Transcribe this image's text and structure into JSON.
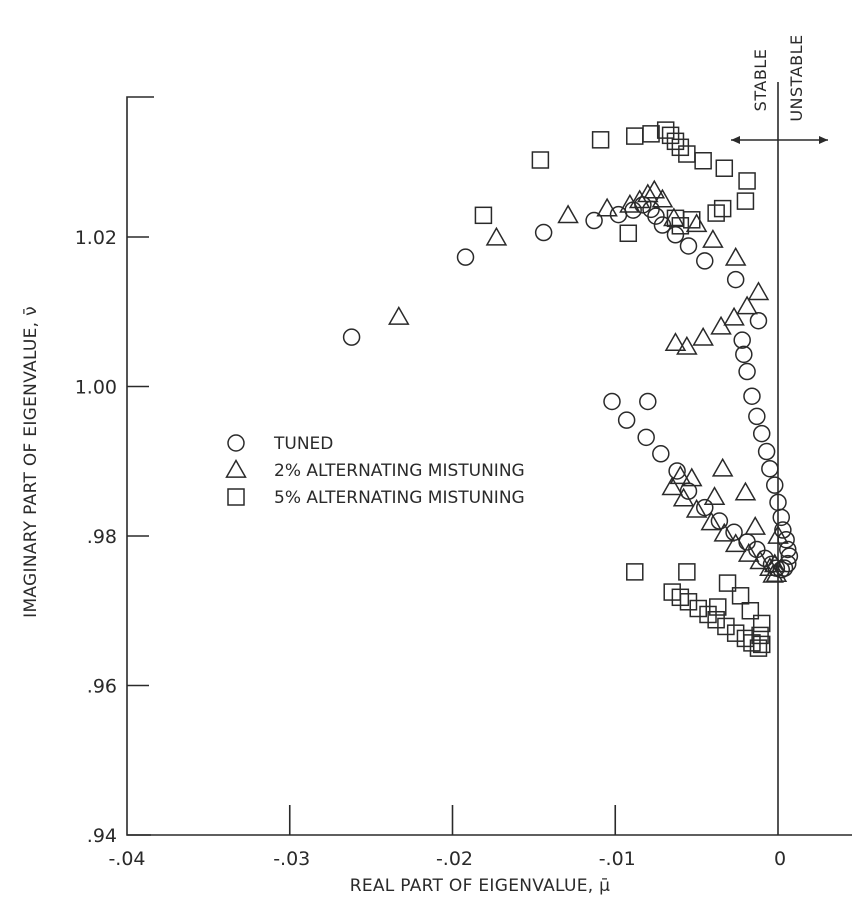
{
  "chart_data": {
    "type": "scatter",
    "title": "",
    "xlabel": "REAL PART OF EIGENVALUE, μ̄",
    "ylabel": "IMAGINARY PART OF EIGENVALUE, ν̄",
    "xlim": [
      -0.04,
      0.0
    ],
    "ylim": [
      0.94,
      1.035
    ],
    "x_ticks": [
      -0.04,
      -0.03,
      -0.02,
      -0.01,
      0
    ],
    "x_tick_labels": [
      "-.04",
      "-.03",
      "-.02",
      "-.01",
      "0"
    ],
    "y_ticks": [
      0.94,
      0.96,
      0.98,
      1.0,
      1.02
    ],
    "y_tick_labels": [
      ".94",
      ".96",
      ".98",
      "1.00",
      "1.02"
    ],
    "grid": false,
    "legend_position": "center-left",
    "annotations": {
      "stable": "STABLE",
      "unstable": "UNSTABLE"
    },
    "series": [
      {
        "name": "TUNED",
        "marker": "circle",
        "points": [
          [
            -0.0262,
            1.0066
          ],
          [
            -0.0192,
            1.0173
          ],
          [
            -0.0144,
            1.0206
          ],
          [
            -0.0113,
            1.0222
          ],
          [
            -0.0098,
            1.023
          ],
          [
            -0.0089,
            1.0236
          ],
          [
            -0.0083,
            1.0243
          ],
          [
            -0.0078,
            1.0237
          ],
          [
            -0.0075,
            1.0228
          ],
          [
            -0.0071,
            1.0216
          ],
          [
            -0.0063,
            1.0203
          ],
          [
            -0.0055,
            1.0188
          ],
          [
            -0.0045,
            1.0168
          ],
          [
            -0.0026,
            1.0143
          ],
          [
            -0.0022,
            1.0062
          ],
          [
            -0.0021,
            1.0043
          ],
          [
            -0.0019,
            1.002
          ],
          [
            -0.0016,
            0.9987
          ],
          [
            -0.0013,
            0.996
          ],
          [
            -0.001,
            0.9937
          ],
          [
            -0.0007,
            0.9913
          ],
          [
            -0.0005,
            0.989
          ],
          [
            -0.0002,
            0.9868
          ],
          [
            0.0,
            0.9845
          ],
          [
            0.0002,
            0.9825
          ],
          [
            0.0003,
            0.9808
          ],
          [
            0.0005,
            0.9795
          ],
          [
            0.0006,
            0.9782
          ],
          [
            0.0007,
            0.9773
          ],
          [
            0.0006,
            0.9763
          ],
          [
            0.0004,
            0.9757
          ],
          [
            0.0002,
            0.9755
          ],
          [
            -0.0001,
            0.9757
          ],
          [
            -0.0004,
            0.9762
          ],
          [
            -0.0008,
            0.977
          ],
          [
            -0.0013,
            0.9782
          ],
          [
            -0.0019,
            0.9792
          ],
          [
            -0.0027,
            0.9805
          ],
          [
            -0.0036,
            0.982
          ],
          [
            -0.0045,
            0.9838
          ],
          [
            -0.0055,
            0.986
          ],
          [
            -0.0062,
            0.9887
          ],
          [
            -0.0072,
            0.991
          ],
          [
            -0.0081,
            0.9932
          ],
          [
            -0.0093,
            0.9955
          ],
          [
            -0.0102,
            0.998
          ],
          [
            -0.008,
            0.998
          ],
          [
            -0.0012,
            1.0088
          ]
        ]
      },
      {
        "name": "2% ALTERNATING MISTUNING",
        "marker": "triangle",
        "points": [
          [
            -0.0233,
            1.0093
          ],
          [
            -0.0173,
            1.0199
          ],
          [
            -0.0129,
            1.0229
          ],
          [
            -0.0105,
            1.0238
          ],
          [
            -0.0091,
            1.0243
          ],
          [
            -0.0085,
            1.0249
          ],
          [
            -0.008,
            1.0257
          ],
          [
            -0.0076,
            1.0262
          ],
          [
            -0.0071,
            1.025
          ],
          [
            -0.0064,
            1.0225
          ],
          [
            -0.005,
            1.0217
          ],
          [
            -0.004,
            1.0196
          ],
          [
            -0.0026,
            1.0172
          ],
          [
            -0.0012,
            1.0126
          ],
          [
            -0.0063,
            1.0058
          ],
          [
            -0.0056,
            1.0053
          ],
          [
            -0.0046,
            1.0065
          ],
          [
            -0.0035,
            1.008
          ],
          [
            -0.0027,
            1.0092
          ],
          [
            -0.0019,
            1.0107
          ],
          [
            -0.0034,
            0.989
          ],
          [
            -0.006,
            0.988
          ],
          [
            -0.0053,
            0.9877
          ],
          [
            -0.0039,
            0.9852
          ],
          [
            -0.002,
            0.9858
          ],
          [
            -0.0065,
            0.9865
          ],
          [
            -0.0058,
            0.985
          ],
          [
            -0.005,
            0.9835
          ],
          [
            -0.0041,
            0.9818
          ],
          [
            -0.0033,
            0.9803
          ],
          [
            -0.0026,
            0.9789
          ],
          [
            -0.0018,
            0.9776
          ],
          [
            -0.0011,
            0.9766
          ],
          [
            -0.0005,
            0.9757
          ],
          [
            -0.0001,
            0.9749
          ],
          [
            -0.0003,
            0.9748
          ],
          [
            -0.0002,
            0.9762
          ],
          [
            -0.0014,
            0.9812
          ],
          [
            0.0,
            0.98
          ]
        ]
      },
      {
        "name": "5% ALTERNATING MISTUNING",
        "marker": "square",
        "points": [
          [
            -0.0181,
            1.0229
          ],
          [
            -0.0146,
            1.0303
          ],
          [
            -0.0109,
            1.033
          ],
          [
            -0.0088,
            1.0335
          ],
          [
            -0.0078,
            1.0338
          ],
          [
            -0.0069,
            1.0343
          ],
          [
            -0.0066,
            1.0336
          ],
          [
            -0.0063,
            1.0328
          ],
          [
            -0.006,
            1.032
          ],
          [
            -0.0056,
            1.0311
          ],
          [
            -0.0046,
            1.0302
          ],
          [
            -0.0033,
            1.0292
          ],
          [
            -0.0019,
            1.0275
          ],
          [
            -0.002,
            1.0248
          ],
          [
            -0.0034,
            1.0238
          ],
          [
            -0.0038,
            1.0232
          ],
          [
            -0.0053,
            1.0223
          ],
          [
            -0.006,
            1.0215
          ],
          [
            -0.0063,
            1.0225
          ],
          [
            -0.0092,
            1.0205
          ],
          [
            -0.0088,
            0.9752
          ],
          [
            -0.0065,
            0.9725
          ],
          [
            -0.006,
            0.9718
          ],
          [
            -0.0055,
            0.9712
          ],
          [
            -0.0049,
            0.9703
          ],
          [
            -0.0043,
            0.9695
          ],
          [
            -0.0038,
            0.9688
          ],
          [
            -0.0032,
            0.9679
          ],
          [
            -0.0026,
            0.967
          ],
          [
            -0.002,
            0.9663
          ],
          [
            -0.0016,
            0.9657
          ],
          [
            -0.0012,
            0.965
          ],
          [
            -0.001,
            0.9655
          ],
          [
            -0.0011,
            0.9667
          ],
          [
            -0.001,
            0.9683
          ],
          [
            -0.0017,
            0.97
          ],
          [
            -0.0023,
            0.972
          ],
          [
            -0.0031,
            0.9737
          ],
          [
            -0.0056,
            0.9752
          ],
          [
            -0.0037,
            0.9705
          ]
        ]
      }
    ]
  }
}
